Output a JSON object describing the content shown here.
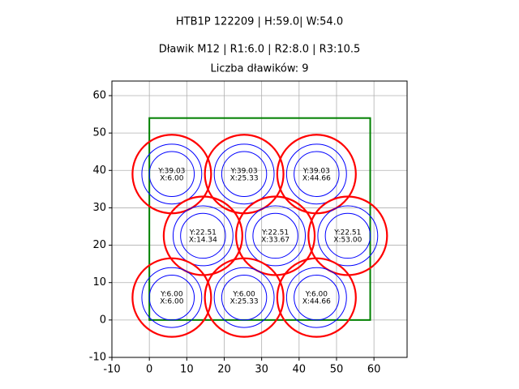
{
  "chart_data": {
    "type": "circles",
    "title": "HTB1P 122209 | H:59.0| W:54.0",
    "subtitle": "Dławik M12 | R1:6.0 | R2:8.0 | R3:10.5",
    "subtitle2": "Liczba dławików: 9",
    "xlim": [
      -10,
      68.85
    ],
    "ylim": [
      -10,
      63.9
    ],
    "xticks": [
      -10,
      0,
      10,
      20,
      30,
      40,
      50,
      60
    ],
    "yticks": [
      -10,
      0,
      10,
      20,
      30,
      40,
      50,
      60
    ],
    "grid": true,
    "boundary": {
      "width": 59,
      "height": 54,
      "color": "#008000"
    },
    "radii": [
      6,
      8,
      10.5
    ],
    "radius_colors": [
      "#0000ff",
      "#0000ff",
      "#ff0000"
    ],
    "x": [
      6,
      25.33,
      44.66,
      14.34,
      33.67,
      53,
      6,
      25.33,
      44.66
    ],
    "y": [
      39.03,
      39.03,
      39.03,
      22.51,
      22.51,
      22.51,
      6,
      6,
      6
    ],
    "x_labels": [
      "X:6.00",
      "X:25.33",
      "X:44.66",
      "X:14.34",
      "X:33.67",
      "X:53.00",
      "X:6.00",
      "X:25.33",
      "X:44.66"
    ],
    "y_labels": [
      "Y:39.03",
      "Y:39.03",
      "Y:39.03",
      "Y:22.51",
      "Y:22.51",
      "Y:22.51",
      "Y:6.00",
      "Y:6.00",
      "Y:6.00"
    ]
  }
}
